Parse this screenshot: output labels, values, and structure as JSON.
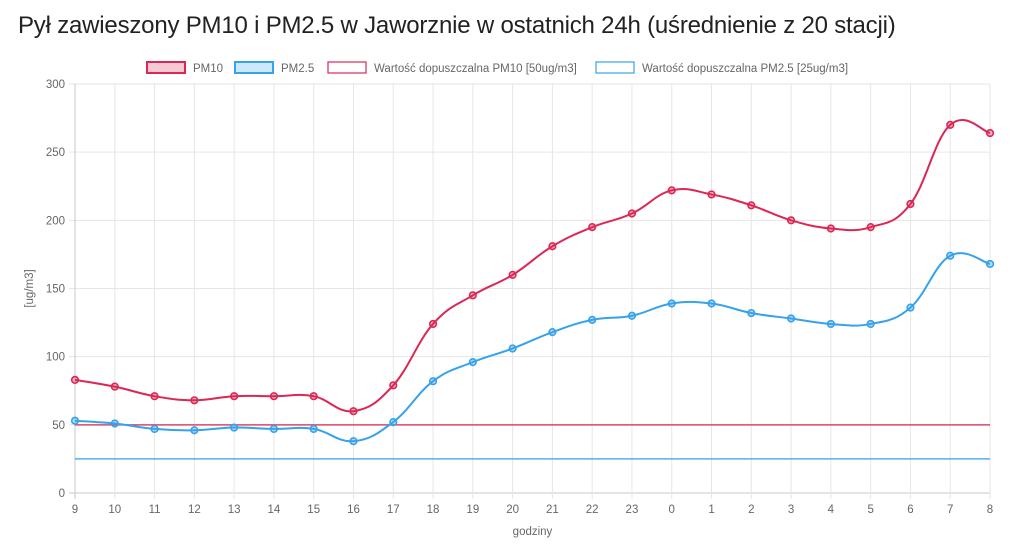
{
  "page": {
    "title": "Pył zawieszony PM10 i PM2.5 w Jaworznie w ostatnich 24h (uśrednienie z 20 stacji)"
  },
  "chart_data": {
    "type": "line",
    "title": "Pył zawieszony PM10 i PM2.5 w Jaworznie w ostatnich 24h (uśrednienie z 20 stacji)",
    "xlabel": "godziny",
    "ylabel": "[ug/m3]",
    "ylim": [
      0,
      300
    ],
    "yticks": [
      0,
      50,
      100,
      150,
      200,
      250,
      300
    ],
    "grid": true,
    "legend_position": "top-center",
    "categories": [
      "9",
      "10",
      "11",
      "12",
      "13",
      "14",
      "15",
      "16",
      "17",
      "18",
      "19",
      "20",
      "21",
      "22",
      "23",
      "0",
      "1",
      "2",
      "3",
      "4",
      "5",
      "6",
      "7",
      "8"
    ],
    "series": [
      {
        "name": "PM10",
        "color": "#dc2755",
        "values": [
          83,
          78,
          71,
          68,
          71,
          71,
          71,
          60,
          79,
          124,
          145,
          160,
          181,
          195,
          205,
          222,
          219,
          211,
          200,
          194,
          195,
          212,
          270,
          264
        ]
      },
      {
        "name": "PM2.5",
        "color": "#36a2eb",
        "values": [
          53,
          51,
          47,
          46,
          48,
          47,
          47,
          38,
          52,
          82,
          96,
          106,
          118,
          127,
          130,
          139,
          139,
          132,
          128,
          124,
          124,
          136,
          174,
          168
        ]
      },
      {
        "name": "Wartość dopuszczalna PM10 [50ug/m3]",
        "color": "#dc2755",
        "values": [
          50,
          50,
          50,
          50,
          50,
          50,
          50,
          50,
          50,
          50,
          50,
          50,
          50,
          50,
          50,
          50,
          50,
          50,
          50,
          50,
          50,
          50,
          50,
          50
        ]
      },
      {
        "name": "Wartość dopuszczalna PM2.5 [25ug/m3]",
        "color": "#36a2eb",
        "values": [
          25,
          25,
          25,
          25,
          25,
          25,
          25,
          25,
          25,
          25,
          25,
          25,
          25,
          25,
          25,
          25,
          25,
          25,
          25,
          25,
          25,
          25,
          25,
          25
        ]
      }
    ]
  }
}
